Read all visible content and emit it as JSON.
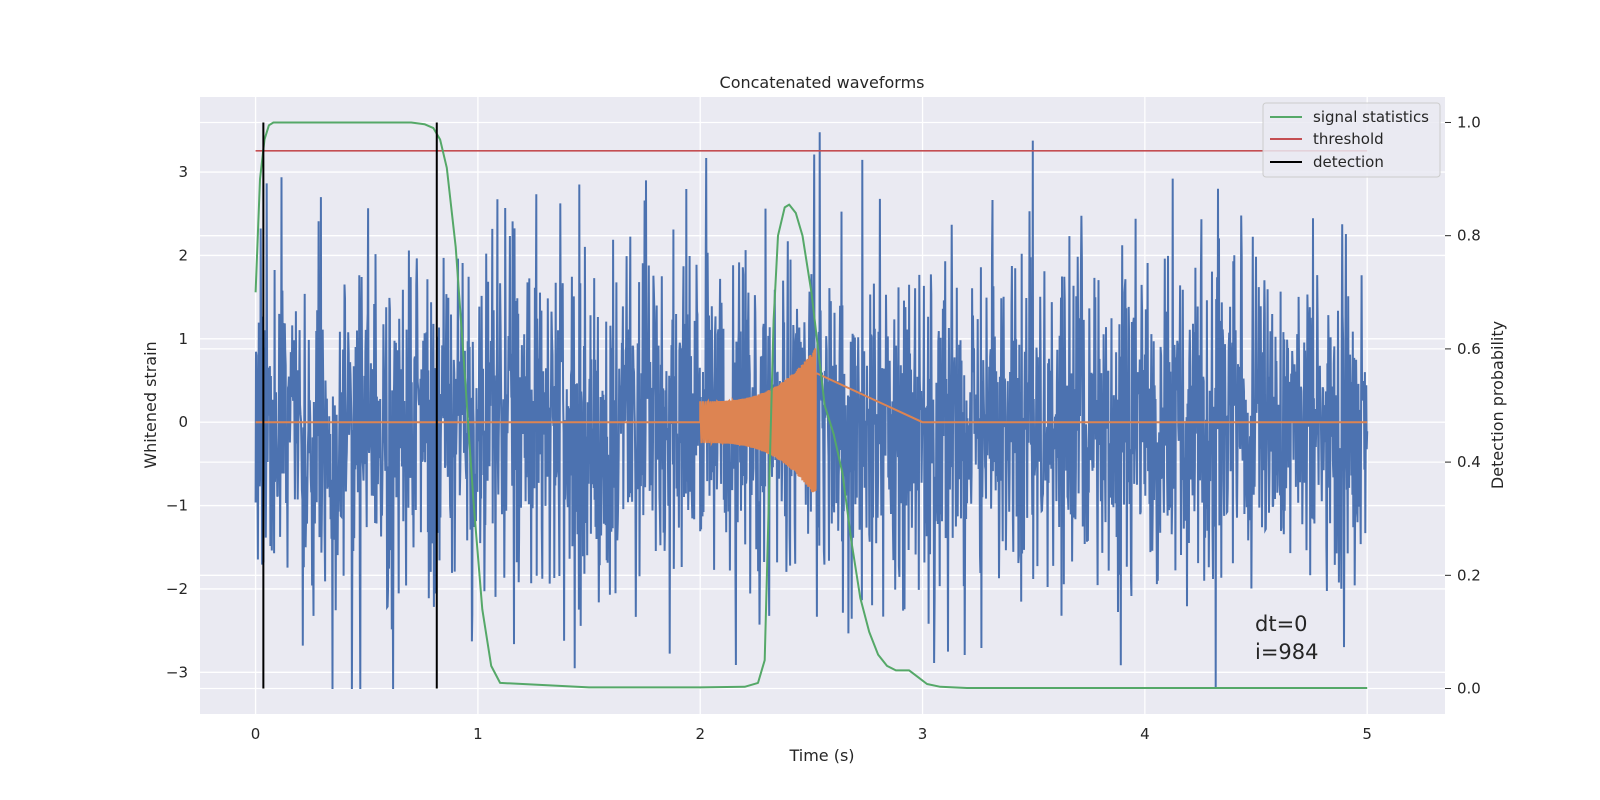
{
  "chart_data": {
    "type": "line",
    "title": "Concatenated waveforms",
    "xlabel": "Time (s)",
    "ylabel": "Whitened strain",
    "y2label": "Detection probability",
    "xlim": [
      -0.25,
      5.35
    ],
    "ylim": [
      -3.5,
      3.9
    ],
    "y2lim": [
      -0.045,
      1.045
    ],
    "xticks": [
      0,
      1,
      2,
      3,
      4,
      5
    ],
    "yticks": [
      -3,
      -2,
      -1,
      0,
      1,
      2,
      3
    ],
    "y2ticks": [
      0.0,
      0.2,
      0.4,
      0.6,
      0.8,
      1.0
    ],
    "ytick_labels": [
      "−3",
      "−2",
      "−1",
      "0",
      "1",
      "2",
      "3"
    ],
    "y2tick_labels": [
      "0.0",
      "0.2",
      "0.4",
      "0.6",
      "0.8",
      "1.0"
    ],
    "grid": true,
    "legend_position": "top-right",
    "colors": {
      "background": "#eaeaf2",
      "strain": "#4c72b0",
      "waveform": "#dd8452",
      "signal_statistics": "#55a868",
      "threshold": "#c44e52",
      "detection": "#000000"
    },
    "series": [
      {
        "name": "strain",
        "axis": "left",
        "x_range": [
          0,
          5
        ],
        "amplitude_envelope": 1.0,
        "peak_extremes": [
          3.6,
          -3.2
        ]
      },
      {
        "name": "waveform",
        "axis": "left",
        "x_range": [
          2.0,
          2.52
        ],
        "amplitude_start": 0.25,
        "amplitude_peak": 0.9,
        "ringdown_end": 3.0
      },
      {
        "name": "signal statistics",
        "axis": "right",
        "x": [
          0.0,
          0.02,
          0.04,
          0.06,
          0.08,
          0.1,
          0.2,
          0.4,
          0.6,
          0.7,
          0.76,
          0.8,
          0.83,
          0.86,
          0.9,
          0.94,
          0.98,
          1.02,
          1.06,
          1.1,
          1.5,
          2.0,
          2.2,
          2.26,
          2.29,
          2.31,
          2.33,
          2.35,
          2.38,
          2.4,
          2.43,
          2.46,
          2.5,
          2.53,
          2.56,
          2.6,
          2.64,
          2.68,
          2.72,
          2.76,
          2.8,
          2.84,
          2.88,
          2.94,
          2.98,
          3.02,
          3.08,
          3.2,
          5.0
        ],
        "values": [
          0.7,
          0.9,
          0.97,
          0.995,
          1.0,
          1.0,
          1.0,
          1.0,
          1.0,
          1.0,
          0.997,
          0.99,
          0.97,
          0.92,
          0.78,
          0.56,
          0.33,
          0.14,
          0.04,
          0.01,
          0.002,
          0.002,
          0.003,
          0.01,
          0.05,
          0.35,
          0.65,
          0.8,
          0.85,
          0.855,
          0.84,
          0.8,
          0.7,
          0.6,
          0.5,
          0.45,
          0.38,
          0.26,
          0.16,
          0.1,
          0.06,
          0.04,
          0.032,
          0.032,
          0.02,
          0.008,
          0.003,
          0.001,
          0.001
        ]
      },
      {
        "name": "threshold",
        "axis": "right",
        "x": [
          0,
          5
        ],
        "values": [
          0.95,
          0.95
        ]
      },
      {
        "name": "detection",
        "axis": "right",
        "x": [
          0.035,
          0.815
        ],
        "values": [
          [
            0.0,
            1.0
          ],
          [
            0.0,
            1.0
          ]
        ]
      }
    ],
    "annotations": [
      "dt=0",
      "i=984"
    ]
  }
}
